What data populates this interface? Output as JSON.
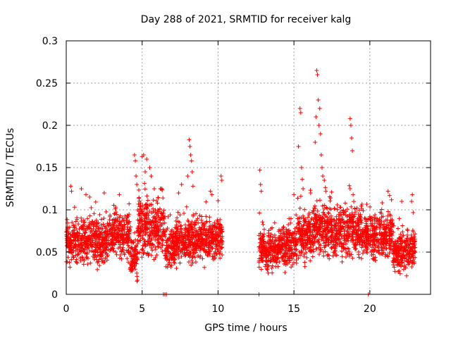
{
  "chart_data": {
    "type": "scatter",
    "title": "Day 288 of 2021, SRMTID for receiver kalg",
    "xlabel": "GPS time / hours",
    "ylabel": "SRMTID / TECUs",
    "xlim": [
      0,
      24
    ],
    "ylim": [
      0,
      0.3
    ],
    "grid": true,
    "marker": "+",
    "series_color": "#ff0000",
    "x_ticks": [
      0,
      5,
      10,
      15,
      20
    ],
    "x_tick_labels": [
      "0",
      "5",
      "10",
      "15",
      "20"
    ],
    "y_ticks": [
      0,
      0.05,
      0.1,
      0.15,
      0.2,
      0.25,
      0.3
    ],
    "y_tick_labels": [
      "0",
      "0.05",
      "0.1",
      "0.15",
      "0.2",
      "0.25",
      "0.3"
    ],
    "zero_points_x": [
      6.4,
      6.5,
      6.6,
      12.7,
      19.9
    ],
    "segments": [
      {
        "x0": 0.0,
        "x1": 2.8,
        "base": 0.062,
        "spread": 0.02
      },
      {
        "x0": 2.8,
        "x1": 4.2,
        "base": 0.07,
        "spread": 0.022
      },
      {
        "x0": 4.2,
        "x1": 4.7,
        "base": 0.045,
        "spread": 0.02
      },
      {
        "x0": 4.7,
        "x1": 6.5,
        "base": 0.08,
        "spread": 0.028
      },
      {
        "x0": 6.5,
        "x1": 7.2,
        "base": 0.055,
        "spread": 0.018
      },
      {
        "x0": 7.2,
        "x1": 10.3,
        "base": 0.065,
        "spread": 0.022
      },
      {
        "x0": 12.7,
        "x1": 14.0,
        "base": 0.052,
        "spread": 0.018
      },
      {
        "x0": 14.0,
        "x1": 15.2,
        "base": 0.058,
        "spread": 0.02
      },
      {
        "x0": 15.2,
        "x1": 16.2,
        "base": 0.07,
        "spread": 0.025
      },
      {
        "x0": 16.2,
        "x1": 19.5,
        "base": 0.075,
        "spread": 0.025
      },
      {
        "x0": 19.5,
        "x1": 21.5,
        "base": 0.07,
        "spread": 0.022
      },
      {
        "x0": 21.5,
        "x1": 23.0,
        "base": 0.052,
        "spread": 0.02
      }
    ],
    "spikes": [
      {
        "x": 0.3,
        "y": 0.128
      },
      {
        "x": 0.35,
        "y": 0.122
      },
      {
        "x": 1.0,
        "y": 0.125
      },
      {
        "x": 1.3,
        "y": 0.118
      },
      {
        "x": 2.5,
        "y": 0.12
      },
      {
        "x": 3.5,
        "y": 0.118
      },
      {
        "x": 4.5,
        "y": 0.165
      },
      {
        "x": 4.55,
        "y": 0.158
      },
      {
        "x": 4.6,
        "y": 0.14
      },
      {
        "x": 4.65,
        "y": 0.13
      },
      {
        "x": 5.0,
        "y": 0.163
      },
      {
        "x": 5.1,
        "y": 0.165
      },
      {
        "x": 5.2,
        "y": 0.145
      },
      {
        "x": 5.3,
        "y": 0.16
      },
      {
        "x": 5.5,
        "y": 0.15
      },
      {
        "x": 5.6,
        "y": 0.14
      },
      {
        "x": 5.8,
        "y": 0.125
      },
      {
        "x": 6.2,
        "y": 0.125
      },
      {
        "x": 7.4,
        "y": 0.12
      },
      {
        "x": 7.6,
        "y": 0.13
      },
      {
        "x": 8.0,
        "y": 0.14
      },
      {
        "x": 8.1,
        "y": 0.183
      },
      {
        "x": 8.15,
        "y": 0.175
      },
      {
        "x": 8.2,
        "y": 0.165
      },
      {
        "x": 8.25,
        "y": 0.158
      },
      {
        "x": 8.3,
        "y": 0.145
      },
      {
        "x": 8.35,
        "y": 0.128
      },
      {
        "x": 9.5,
        "y": 0.122
      },
      {
        "x": 9.6,
        "y": 0.118
      },
      {
        "x": 10.2,
        "y": 0.14
      },
      {
        "x": 10.25,
        "y": 0.135
      },
      {
        "x": 12.75,
        "y": 0.147
      },
      {
        "x": 12.8,
        "y": 0.13
      },
      {
        "x": 12.85,
        "y": 0.122
      },
      {
        "x": 15.0,
        "y": 0.118
      },
      {
        "x": 15.3,
        "y": 0.175
      },
      {
        "x": 15.4,
        "y": 0.22
      },
      {
        "x": 15.45,
        "y": 0.215
      },
      {
        "x": 15.5,
        "y": 0.15
      },
      {
        "x": 15.55,
        "y": 0.136
      },
      {
        "x": 15.6,
        "y": 0.125
      },
      {
        "x": 16.1,
        "y": 0.12
      },
      {
        "x": 16.4,
        "y": 0.18
      },
      {
        "x": 16.45,
        "y": 0.21
      },
      {
        "x": 16.5,
        "y": 0.265
      },
      {
        "x": 16.55,
        "y": 0.26
      },
      {
        "x": 16.6,
        "y": 0.23
      },
      {
        "x": 16.65,
        "y": 0.2
      },
      {
        "x": 16.7,
        "y": 0.22
      },
      {
        "x": 16.75,
        "y": 0.19
      },
      {
        "x": 16.8,
        "y": 0.165
      },
      {
        "x": 16.85,
        "y": 0.15
      },
      {
        "x": 16.9,
        "y": 0.14
      },
      {
        "x": 17.0,
        "y": 0.135
      },
      {
        "x": 17.1,
        "y": 0.122
      },
      {
        "x": 18.7,
        "y": 0.208
      },
      {
        "x": 18.75,
        "y": 0.2
      },
      {
        "x": 18.8,
        "y": 0.185
      },
      {
        "x": 18.85,
        "y": 0.17
      },
      {
        "x": 18.7,
        "y": 0.125
      },
      {
        "x": 18.9,
        "y": 0.118
      },
      {
        "x": 21.2,
        "y": 0.122
      },
      {
        "x": 21.3,
        "y": 0.117
      },
      {
        "x": 22.1,
        "y": 0.11
      },
      {
        "x": 22.8,
        "y": 0.118
      },
      {
        "x": 22.75,
        "y": 0.11
      }
    ]
  }
}
